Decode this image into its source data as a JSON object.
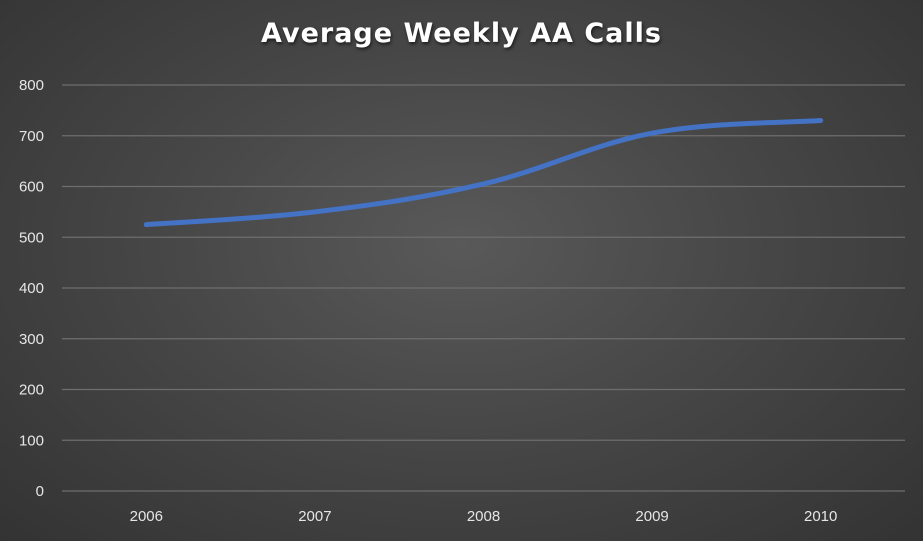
{
  "chart_data": {
    "type": "line",
    "title": "Average Weekly AA Calls",
    "xlabel": "",
    "ylabel": "",
    "categories": [
      "2006",
      "2007",
      "2008",
      "2009",
      "2010"
    ],
    "series": [
      {
        "values": [
          525,
          550,
          605,
          705,
          730
        ],
        "color": "#4472C4"
      }
    ],
    "ylim": [
      0,
      800
    ],
    "yticks": [
      0,
      100,
      200,
      300,
      400,
      500,
      600,
      700,
      800
    ],
    "grid": true,
    "legend": "none"
  },
  "colors": {
    "background": "#474747",
    "gridline": "#6e6e6e",
    "text": "#e6e6e6",
    "line": "#4472C4"
  }
}
